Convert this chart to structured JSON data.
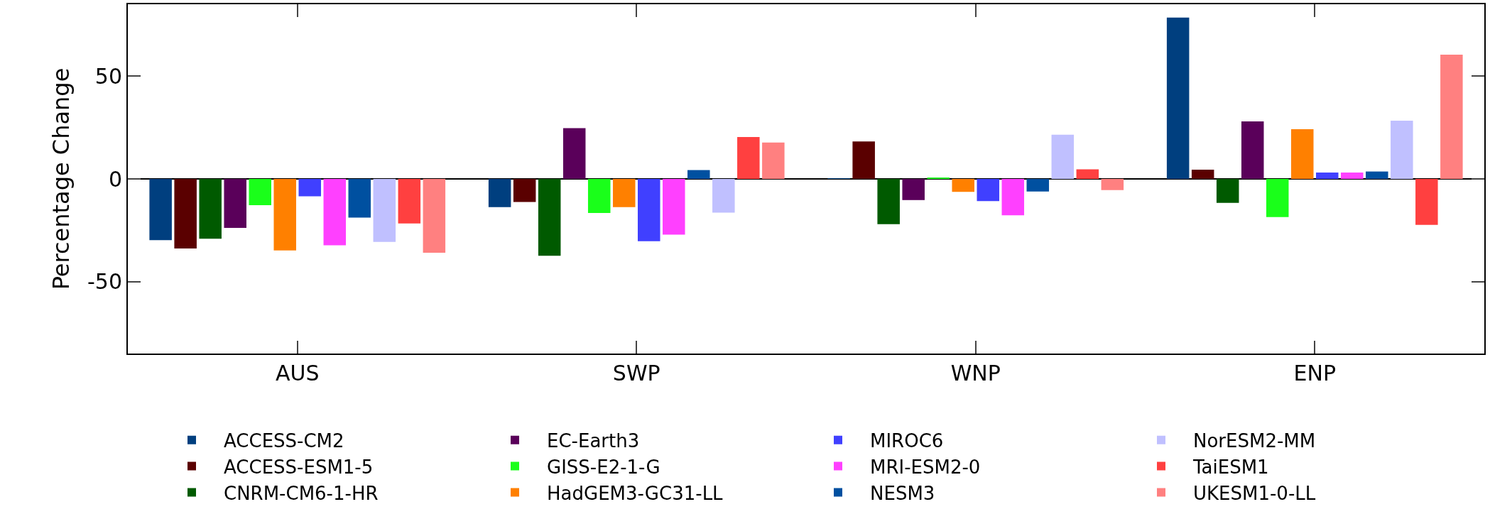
{
  "chart_data": {
    "type": "bar",
    "ylabel": "Percentage Change",
    "categories": [
      "AUS",
      "SWP",
      "WNP",
      "ENP"
    ],
    "ylim": [
      -85,
      85
    ],
    "yticks": [
      -50,
      0,
      50
    ],
    "grid": false,
    "legend": "bottom",
    "ref_lines": [
      {
        "axis": "y",
        "value": 0,
        "color": "#000000"
      }
    ],
    "series": [
      {
        "name": "ACCESS-CM2",
        "color": "#003f7f",
        "values": [
          -29.8,
          -13.7,
          0.2,
          78.5
        ]
      },
      {
        "name": "ACCESS-ESM1-5",
        "color": "#5a0000",
        "values": [
          -33.9,
          -11.2,
          18.2,
          4.5
        ]
      },
      {
        "name": "CNRM-CM6-1-HR",
        "color": "#005a00",
        "values": [
          -29.1,
          -37.4,
          -22,
          -11.7
        ]
      },
      {
        "name": "EC-Earth3",
        "color": "#5a005a",
        "values": [
          -23.8,
          24.7,
          -10.3,
          28
        ]
      },
      {
        "name": "GISS-E2-1-G",
        "color": "#1aff1a",
        "values": [
          -12.8,
          -16.6,
          0.7,
          -18.6
        ]
      },
      {
        "name": "HadGEM3-GC31-LL",
        "color": "#ff8000",
        "values": [
          -34.8,
          -13.7,
          -6.3,
          24.2
        ]
      },
      {
        "name": "MIROC6",
        "color": "#4040ff",
        "values": [
          -8.5,
          -30.3,
          -10.8,
          3.1
        ]
      },
      {
        "name": "MRI-ESM2-0",
        "color": "#ff40ff",
        "values": [
          -32.3,
          -27.1,
          -17.7,
          3.1
        ]
      },
      {
        "name": "NESM3",
        "color": "#0050a0",
        "values": [
          -18.8,
          4.3,
          -6.1,
          3.6
        ]
      },
      {
        "name": "NorESM2-MM",
        "color": "#c0c0ff",
        "values": [
          -30.7,
          -16.4,
          21.5,
          28.3
        ]
      },
      {
        "name": "TaiESM1",
        "color": "#ff4040",
        "values": [
          -21.7,
          20.4,
          4.7,
          -22.4
        ]
      },
      {
        "name": "UKESM1-0-LL",
        "color": "#ff8080",
        "values": [
          -35.9,
          17.7,
          -5.4,
          60.5
        ]
      }
    ]
  }
}
